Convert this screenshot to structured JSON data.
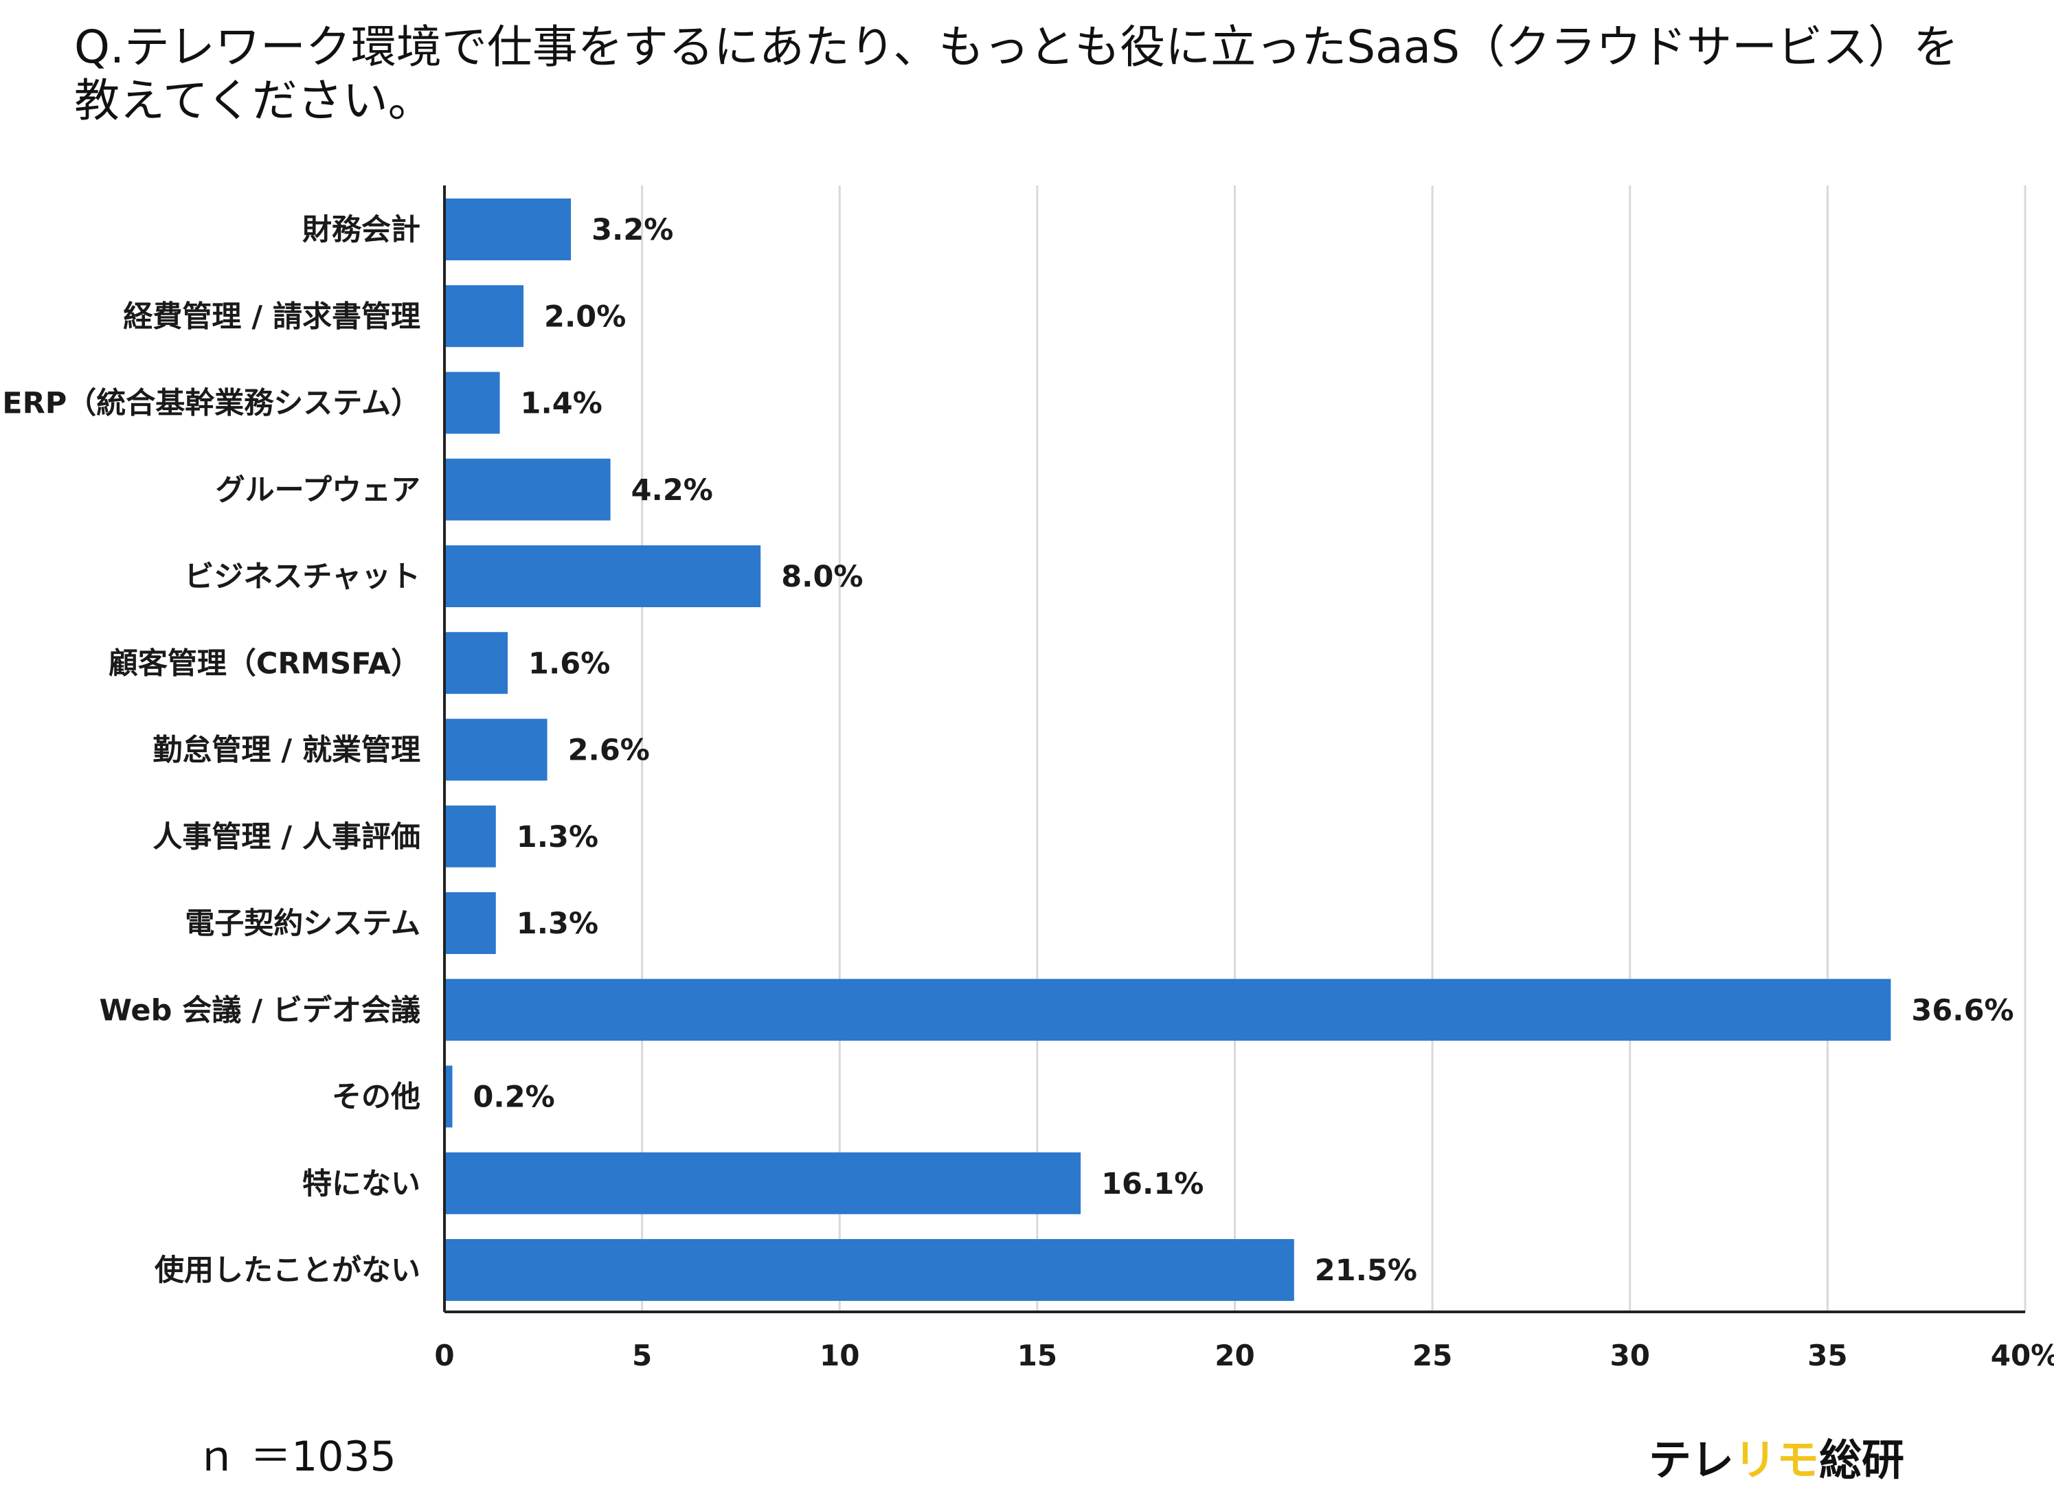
{
  "title": "Q.テレワーク環境で仕事をするにあたり、もっとも役に立ったSaaS（クラウドサービス）を教えてください。",
  "sample_size": "ｎ ＝1035",
  "brand": {
    "part1": "テレ",
    "part2": "リモ",
    "part3": "総研"
  },
  "colors": {
    "bar": "#2b78cd",
    "grid": "#d9d9d9",
    "axis": "#222222",
    "brand_accent": "#f2c41c"
  },
  "chart_data": {
    "type": "bar",
    "orientation": "horizontal",
    "categories": [
      "財務会計",
      "経費管理 / 請求書管理",
      "ERP（統合基幹業務システム）",
      "グループウェア",
      "ビジネスチャット",
      "顧客管理（CRMSFA）",
      "勤怠管理 / 就業管理",
      "人事管理 / 人事評価",
      "電子契約システム",
      "Web 会議 / ビデオ会議",
      "その他",
      "特にない",
      "使用したことがない"
    ],
    "values": [
      3.2,
      2.0,
      1.4,
      4.2,
      8.0,
      1.6,
      2.6,
      1.3,
      1.3,
      36.6,
      0.2,
      16.1,
      21.5
    ],
    "value_labels": [
      "3.2%",
      "2.0%",
      "1.4%",
      "4.2%",
      "8.0%",
      "1.6%",
      "2.6%",
      "1.3%",
      "1.3%",
      "36.6%",
      "0.2%",
      "16.1%",
      "21.5%"
    ],
    "xlim": [
      0,
      40
    ],
    "xticks": [
      0,
      5,
      10,
      15,
      20,
      25,
      30,
      35,
      40
    ],
    "xtick_labels": [
      "0",
      "5",
      "10",
      "15",
      "20",
      "25",
      "30",
      "35",
      "40%"
    ],
    "grid": true,
    "legend": "none"
  }
}
